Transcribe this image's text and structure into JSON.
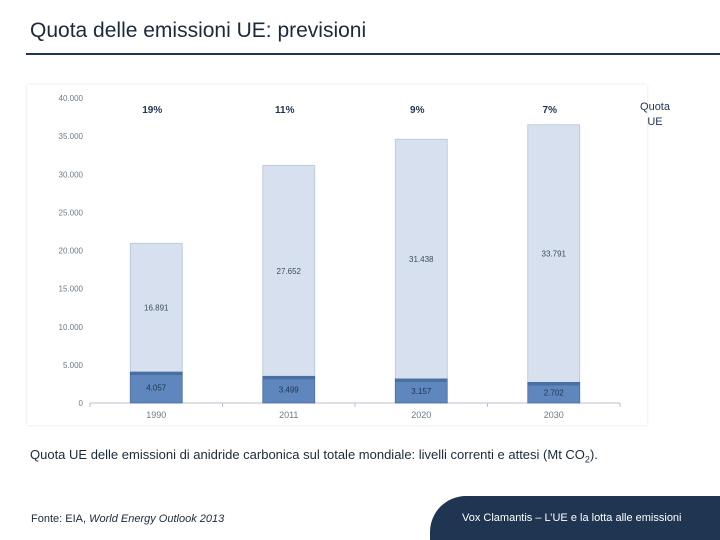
{
  "slide": {
    "title": "Quota delle emissioni UE: previsioni",
    "caption_main": "Quota UE delle emissioni di anidride carbonica sul totale mondiale: livelli correnti e attesi (Mt CO",
    "caption_sub": "2",
    "caption_end": ").",
    "source_prefix": "Fonte: EIA, ",
    "source_title": "World Energy Outlook 2013",
    "footer": "Vox Clamantis – L’UE e la lotta alle emissioni"
  },
  "colors": {
    "title_rule": "#1f3552",
    "bar_world": "#d6e0ee",
    "bar_eu": "#5f86bd",
    "share_text": "#1f3552",
    "footer_band": "#1f3552"
  },
  "chart_data": {
    "type": "bar",
    "stacked": true,
    "categories": [
      "1990",
      "2011",
      "2020",
      "2030"
    ],
    "series": [
      {
        "name": "",
        "role": "eu_emissions",
        "values": [
          4057,
          3499,
          3157,
          2702
        ],
        "labels": [
          "4.057",
          "3.499",
          "3.157",
          "2.702"
        ]
      },
      {
        "name": "",
        "role": "rest_of_world",
        "values": [
          16891,
          27652,
          31438,
          33791
        ],
        "labels": [
          "16.891",
          "27.652",
          "31.438",
          "33.791"
        ]
      }
    ],
    "share_labels": [
      "19%",
      "11%",
      "9%",
      "7%"
    ],
    "legend_label": "Quota UE",
    "ylim": [
      0,
      40000
    ],
    "yticks": [
      0,
      5000,
      10000,
      15000,
      20000,
      25000,
      30000,
      35000,
      40000
    ],
    "ytick_labels": [
      "0",
      "5.000",
      "10.000",
      "15.000",
      "20.000",
      "25.000",
      "30.000",
      "35.000",
      "40.000"
    ],
    "grid": false,
    "xlabel": "",
    "ylabel": ""
  }
}
